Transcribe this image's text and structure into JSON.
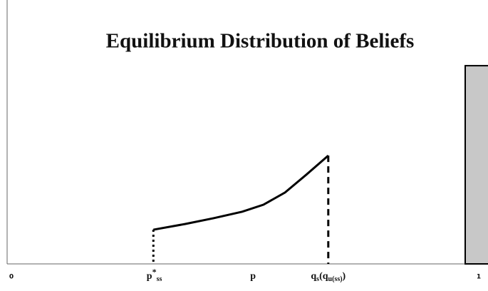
{
  "chart_data": {
    "type": "line",
    "title": "Equilibrium Distribution of Beliefs",
    "xlim": [
      0,
      1
    ],
    "ylim": [
      0,
      1
    ],
    "xticks": [
      0,
      {
        "value": 0.31,
        "label_parts": [
          {
            "text": "p"
          },
          {
            "text": "*",
            "sup": true
          },
          {
            "text": "ss",
            "sub": true
          }
        ]
      },
      {
        "value": 0.52,
        "label_parts": [
          {
            "text": "p"
          }
        ]
      },
      {
        "value": 0.68,
        "label_parts": [
          {
            "text": "q"
          },
          {
            "text": "s",
            "sub": true
          },
          {
            "text": "(q"
          },
          {
            "text": "u(ss)",
            "sub": true
          },
          {
            "text": ")"
          }
        ]
      },
      1
    ],
    "series": [
      {
        "color": "#000000",
        "x": [
          0.308,
          0.376,
          0.436,
          0.497,
          0.542,
          0.588,
          0.633,
          0.68
        ],
        "values": [
          0.137,
          0.16,
          0.183,
          0.209,
          0.237,
          0.286,
          0.357,
          0.434
        ]
      }
    ],
    "mass_point": {
      "x": 1,
      "value": 0.794,
      "color": "#c8c8c8"
    }
  }
}
